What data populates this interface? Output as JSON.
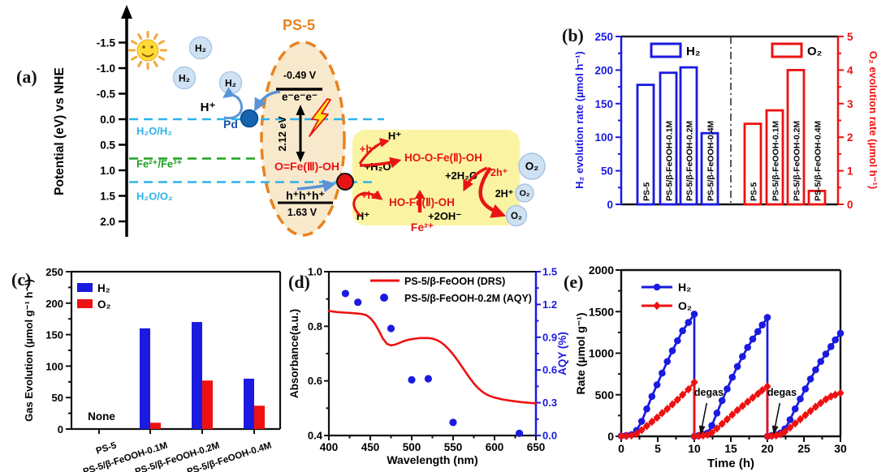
{
  "figure_title": "Photocatalytic overall water splitting figure",
  "colors": {
    "blue": "#1a1ae0",
    "red": "#ee1111",
    "cyan": "#2eb3e8",
    "green": "#1fa021",
    "orange": "#e8821e",
    "pd_blue": "#1763ae",
    "arrow_blue": "#5b94d6",
    "ellipse_fill": "#f9e9cc",
    "box_fill": "#faf3a2",
    "bubble_fill": "#cfe2f4",
    "sun_yellow": "#ffdb38"
  },
  "panels": {
    "a": {
      "label": "(a)",
      "axis_label": "Potential (eV) vs NHE",
      "axis_ticks": [
        "-1.5",
        "-1.0",
        "-0.5",
        "0.0",
        "0.5",
        "1.0",
        "1.5",
        "2.0"
      ],
      "levels": [
        {
          "label": "H₂O/H₂",
          "v": 0.0,
          "color": "#2eb3e8"
        },
        {
          "label": "Fe²⁺/Fe³⁺",
          "v": 0.77,
          "color": "#1fa021"
        },
        {
          "label": "H₂O/O₂",
          "v": 1.23,
          "color": "#2eb3e8"
        }
      ],
      "ps5": "PS-5",
      "cb_potential": "-0.49 V",
      "electrons": "e⁻e⁻e⁻",
      "bandgap": "2.12 eV",
      "species": "O=Fe(Ⅲ)-OH",
      "holes": "h⁺h⁺h⁺",
      "vb_potential": "1.63 V",
      "pd": "Pd",
      "h_plus": "H⁺",
      "h2": "H₂",
      "o2": "O₂",
      "reactions": {
        "h_plus_top": "H⁺",
        "plus_h_top": "+h⁺",
        "plus_h2o": "+H₂O",
        "ho_o_fe": "HO-O-Fe(Ⅱ)-OH",
        "plus_2h2o": "+2H₂O",
        "plus_2h": "+2h⁺",
        "two_h_plus": "2H⁺",
        "plus_h_bot": "+h⁺",
        "ho_fe": "HO-Fe(Ⅱ)-OH",
        "h_plus_bot": "H⁺",
        "plus_2oh": "+2OH⁻",
        "fe2": "Fe²⁺"
      }
    },
    "b": {
      "label": "(b)"
    },
    "c": {
      "label": "(c)"
    },
    "d": {
      "label": "(d)"
    },
    "e": {
      "label": "(e)"
    }
  },
  "chart_data": [
    {
      "id": "b",
      "type": "bar",
      "left_axis": {
        "label": "H₂ evolution rate (µmol h⁻¹)",
        "color": "#1a1ae0",
        "min": 0,
        "max": 250,
        "tick_step": 50,
        "minor_step": 25
      },
      "right_axis": {
        "label": "O₂ evolution rate (µmol h⁻¹)",
        "color": "#ee1111",
        "min": 0,
        "max": 5,
        "tick_step": 1,
        "minor_step": 0.5
      },
      "categories": [
        "PS-5",
        "PS-5/β-FeOOH-0.1M",
        "PS-5/β-FeOOH-0.2M",
        "PS-5/β-FeOOH-0.4M"
      ],
      "series": [
        {
          "name": "H₂",
          "axis": "left",
          "style": "open",
          "color": "#1a1ae0",
          "values": [
            178,
            196,
            204,
            106
          ]
        },
        {
          "name": "O₂",
          "axis": "right",
          "style": "open",
          "color": "#ee1111",
          "values": [
            2.4,
            2.8,
            4.0,
            0.4
          ]
        }
      ],
      "divider": "dash-dot",
      "legend_position": "top"
    },
    {
      "id": "c",
      "type": "bar",
      "y_axis": {
        "label": "Gas Evolution (µmol g⁻¹ h⁻¹)",
        "min": 0,
        "max": 250,
        "tick_step": 50,
        "minor_step": 25
      },
      "categories": [
        "PS-5",
        "PS-5/β-FeOOH-0.1M",
        "PS-5/β-FeOOH-0.2M",
        "PS-5/β-FeOOH-0.4M"
      ],
      "series": [
        {
          "name": "H₂",
          "color": "#1a1ae0",
          "values": [
            0,
            160,
            170,
            80
          ]
        },
        {
          "name": "O₂",
          "color": "#ee1111",
          "values": [
            0,
            10,
            77,
            37
          ]
        }
      ],
      "annotation": {
        "text": "None",
        "category_index": 0
      },
      "legend_position": "top-left"
    },
    {
      "id": "d",
      "type": "line-scatter",
      "x_axis": {
        "label": "Wavelength (nm)",
        "min": 400,
        "max": 650,
        "tick_step": 50,
        "minor_step": 25
      },
      "left_axis": {
        "label": "Absorbance(a.u.)",
        "min": 0.4,
        "max": 1.0,
        "tick_step": 0.2,
        "minor_step": 0.1,
        "decimals": 1
      },
      "right_axis": {
        "label": "AQY (%)",
        "color": "#1a1ae0",
        "min": 0.0,
        "max": 1.5,
        "tick_step": 0.3,
        "minor_step": 0.15,
        "decimals": 1
      },
      "line_series": {
        "name": "PS-5/β-FeOOH (DRS)",
        "color": "#ee1111",
        "axis": "left",
        "points": [
          [
            400,
            0.856
          ],
          [
            410,
            0.852
          ],
          [
            420,
            0.85
          ],
          [
            430,
            0.848
          ],
          [
            440,
            0.845
          ],
          [
            445,
            0.841
          ],
          [
            450,
            0.83
          ],
          [
            455,
            0.812
          ],
          [
            460,
            0.786
          ],
          [
            465,
            0.756
          ],
          [
            470,
            0.736
          ],
          [
            475,
            0.73
          ],
          [
            480,
            0.733
          ],
          [
            485,
            0.739
          ],
          [
            490,
            0.745
          ],
          [
            495,
            0.75
          ],
          [
            500,
            0.753
          ],
          [
            505,
            0.755
          ],
          [
            510,
            0.757
          ],
          [
            515,
            0.757
          ],
          [
            520,
            0.757
          ],
          [
            525,
            0.755
          ],
          [
            530,
            0.75
          ],
          [
            535,
            0.742
          ],
          [
            540,
            0.73
          ],
          [
            545,
            0.715
          ],
          [
            550,
            0.697
          ],
          [
            555,
            0.677
          ],
          [
            560,
            0.655
          ],
          [
            565,
            0.633
          ],
          [
            570,
            0.611
          ],
          [
            575,
            0.591
          ],
          [
            580,
            0.574
          ],
          [
            585,
            0.561
          ],
          [
            590,
            0.551
          ],
          [
            595,
            0.544
          ],
          [
            600,
            0.539
          ],
          [
            610,
            0.532
          ],
          [
            620,
            0.527
          ],
          [
            630,
            0.523
          ],
          [
            640,
            0.52
          ],
          [
            650,
            0.518
          ]
        ]
      },
      "scatter_series": {
        "name": "PS-5/β-FeOOH-0.2M (AQY)",
        "color": "#1a1ae0",
        "axis": "right",
        "points": [
          [
            420,
            1.3
          ],
          [
            435,
            1.22
          ],
          [
            475,
            0.98
          ],
          [
            500,
            0.51
          ],
          [
            520,
            0.52
          ],
          [
            550,
            0.12
          ],
          [
            630,
            0.02
          ]
        ]
      },
      "legend_position": "top"
    },
    {
      "id": "e",
      "type": "line",
      "x_axis": {
        "label": "Time (h)",
        "min": 0,
        "max": 30,
        "tick_step": 5,
        "minor_step": 2.5
      },
      "y_axis": {
        "label": "Rate (µmol g⁻¹)",
        "min": 0,
        "max": 2000,
        "tick_step": 500,
        "minor_step": 250
      },
      "series": [
        {
          "name": "H₂",
          "color": "#1a1ae0",
          "marker": "circle",
          "points": [
            [
              0,
              5
            ],
            [
              0.7,
              10
            ],
            [
              1.4,
              20
            ],
            [
              2.1,
              70
            ],
            [
              2.8,
              180
            ],
            [
              3.5,
              330
            ],
            [
              4.2,
              480
            ],
            [
              4.9,
              620
            ],
            [
              5.6,
              760
            ],
            [
              6.3,
              900
            ],
            [
              7,
              1030
            ],
            [
              7.7,
              1150
            ],
            [
              8.4,
              1270
            ],
            [
              9.2,
              1370
            ],
            [
              10,
              1470
            ],
            [
              10,
              0
            ],
            [
              10.6,
              10
            ],
            [
              11.2,
              25
            ],
            [
              11.8,
              40
            ],
            [
              12.4,
              130
            ],
            [
              13.1,
              280
            ],
            [
              13.8,
              430
            ],
            [
              14.5,
              570
            ],
            [
              15.2,
              710
            ],
            [
              15.9,
              840
            ],
            [
              16.6,
              960
            ],
            [
              17.3,
              1070
            ],
            [
              18,
              1170
            ],
            [
              18.7,
              1260
            ],
            [
              19.3,
              1340
            ],
            [
              20,
              1430
            ],
            [
              20,
              0
            ],
            [
              20.6,
              10
            ],
            [
              21.2,
              20
            ],
            [
              21.8,
              40
            ],
            [
              22.4,
              90
            ],
            [
              23.1,
              200
            ],
            [
              23.8,
              330
            ],
            [
              24.5,
              450
            ],
            [
              25.2,
              570
            ],
            [
              25.9,
              690
            ],
            [
              26.6,
              800
            ],
            [
              27.3,
              900
            ],
            [
              28,
              990
            ],
            [
              28.7,
              1080
            ],
            [
              29.3,
              1160
            ],
            [
              30,
              1240
            ]
          ]
        },
        {
          "name": "O₂",
          "color": "#ee1111",
          "marker": "diamond",
          "points": [
            [
              0,
              2
            ],
            [
              0.7,
              5
            ],
            [
              1.4,
              10
            ],
            [
              2.1,
              30
            ],
            [
              2.8,
              75
            ],
            [
              3.5,
              125
            ],
            [
              4.2,
              175
            ],
            [
              4.9,
              225
            ],
            [
              5.6,
              280
            ],
            [
              6.3,
              330
            ],
            [
              7,
              385
            ],
            [
              7.7,
              440
            ],
            [
              8.4,
              500
            ],
            [
              9.2,
              565
            ],
            [
              10,
              650
            ],
            [
              10,
              0
            ],
            [
              10.6,
              5
            ],
            [
              11.2,
              10
            ],
            [
              11.8,
              20
            ],
            [
              12.4,
              45
            ],
            [
              13.1,
              95
            ],
            [
              13.8,
              150
            ],
            [
              14.5,
              205
            ],
            [
              15.2,
              260
            ],
            [
              15.9,
              315
            ],
            [
              16.6,
              365
            ],
            [
              17.3,
              415
            ],
            [
              18,
              465
            ],
            [
              18.7,
              510
            ],
            [
              19.3,
              555
            ],
            [
              20,
              600
            ],
            [
              20,
              0
            ],
            [
              20.6,
              5
            ],
            [
              21.2,
              10
            ],
            [
              21.8,
              25
            ],
            [
              22.4,
              55
            ],
            [
              23.1,
              105
            ],
            [
              23.8,
              155
            ],
            [
              24.5,
              205
            ],
            [
              25.2,
              255
            ],
            [
              25.9,
              305
            ],
            [
              26.6,
              355
            ],
            [
              27.3,
              400
            ],
            [
              28,
              445
            ],
            [
              28.7,
              480
            ],
            [
              29.3,
              500
            ],
            [
              30,
              520
            ]
          ]
        }
      ],
      "annotations": [
        {
          "text": "degas",
          "text_at": [
            12,
            490
          ],
          "arrow_from": [
            11.7,
            400
          ],
          "arrow_to": [
            10.9,
            45
          ]
        },
        {
          "text": "degas",
          "text_at": [
            22,
            490
          ],
          "arrow_from": [
            21.7,
            400
          ],
          "arrow_to": [
            20.9,
            45
          ]
        }
      ],
      "legend_position": "top-left"
    }
  ]
}
